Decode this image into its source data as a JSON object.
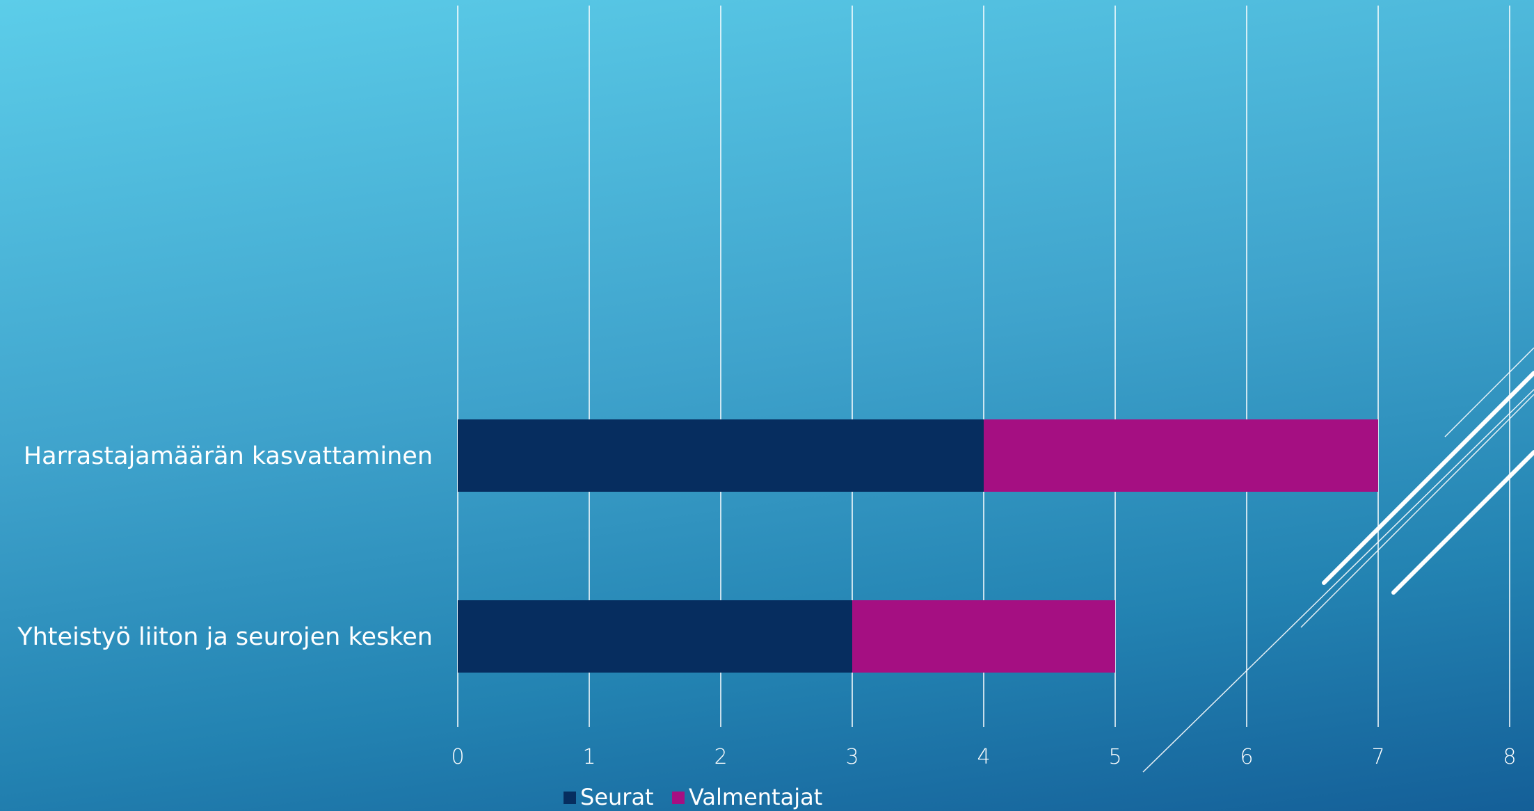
{
  "colors": {
    "seurat": "#062d5f",
    "valmentajat": "#a50f82",
    "gridline": "#ffffff",
    "text": "#ffffff"
  },
  "chart_data": {
    "type": "bar",
    "orientation": "horizontal",
    "stacked": true,
    "categories": [
      "Harrastajamäärän kasvattaminen",
      "Yhteistyö liiton ja seurojen kesken"
    ],
    "series": [
      {
        "name": "Seurat",
        "values": [
          4,
          3
        ]
      },
      {
        "name": "Valmentajat",
        "values": [
          3,
          2
        ]
      }
    ],
    "xlim": [
      0,
      8
    ],
    "xticks": [
      "0",
      "1",
      "2",
      "3",
      "4",
      "5",
      "6",
      "7",
      "8"
    ],
    "grid": true,
    "legend": "bottom",
    "title": "",
    "xlabel": "",
    "ylabel": ""
  }
}
